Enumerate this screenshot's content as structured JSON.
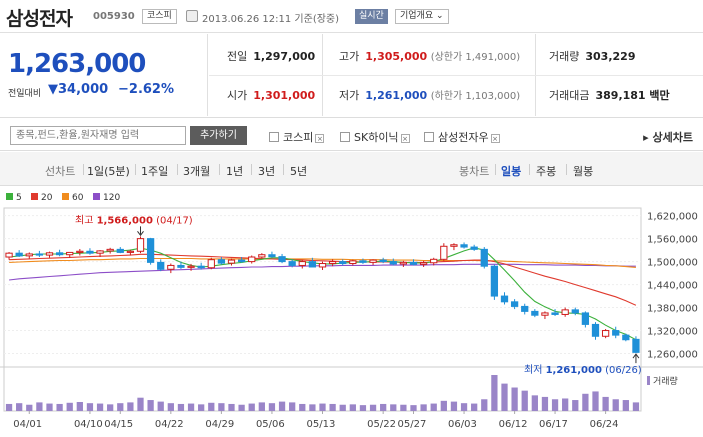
{
  "header": {
    "stock_name": "삼성전자",
    "stock_code": "005930",
    "market_badge": "코스피",
    "timestamp": "2013.06.26 12:11 기준(장중)",
    "realtime_badge": "실시간",
    "company_info_button": "기업개요",
    "company_info_chevron": "chevron-down-icon",
    "info_icon": "document-icon"
  },
  "price": {
    "current": "1,263,000",
    "change_label": "전일대비",
    "change_arrow": "▼",
    "change": "34,000",
    "change_pct": "−2.62%",
    "color": "#1e4fbd"
  },
  "stats": {
    "prev_close_label": "전일",
    "prev_close": "1,297,000",
    "high_label": "고가",
    "high": "1,305,000",
    "upper_limit": "(상한가 1,491,000)",
    "volume_label": "거래량",
    "volume": "303,229",
    "open_label": "시가",
    "open": "1,301,000",
    "low_label": "저가",
    "low": "1,261,000",
    "lower_limit": "(하한가 1,103,000)",
    "amount_label": "거래대금",
    "amount": "389,181 백만",
    "up_color": "#d01c1c",
    "down_color": "#1e4fbd"
  },
  "search": {
    "placeholder": "종목,펀드,환율,원자재명 입력",
    "add_button": "추가하기",
    "compare": [
      {
        "label": "코스피",
        "remove": "⊠"
      },
      {
        "label": "SK하이닉",
        "remove": "⊠"
      },
      {
        "label": "삼성전자우",
        "remove": "⊠"
      }
    ],
    "detail_chart": "▸ 상세차트"
  },
  "tabs": {
    "line_label": "선차트",
    "line_tabs": [
      "1일(5분)",
      "1주일",
      "3개월",
      "1년",
      "3년",
      "5년"
    ],
    "candle_label": "봉차트",
    "candle_tabs": [
      "일봉",
      "주봉",
      "월봉"
    ],
    "active": "일봉"
  },
  "legend": [
    {
      "label": "5",
      "color": "#3cb13c"
    },
    {
      "label": "20",
      "color": "#e03a2e"
    },
    {
      "label": "60",
      "color": "#f08c1e"
    },
    {
      "label": "120",
      "color": "#8c4ec8"
    }
  ],
  "chart_data": {
    "type": "candlestick",
    "y_ticks": [
      "1,620,000",
      "1,560,000",
      "1,500,000",
      "1,440,000",
      "1,380,000",
      "1,320,000",
      "1,260,000"
    ],
    "ylim": [
      1230000,
      1640000
    ],
    "x_labels": [
      "04/01",
      "04/10",
      "04/15",
      "04/22",
      "04/29",
      "05/06",
      "05/13",
      "05/22",
      "05/27",
      "06/03",
      "06/12",
      "06/17",
      "06/24"
    ],
    "high_annotation": {
      "prefix": "최고",
      "value": "1,566,000",
      "date": "(04/17)"
    },
    "low_annotation": {
      "prefix": "최저",
      "value": "1,261,000",
      "date": "(06/26)"
    },
    "volume_label": "거래량",
    "up_color": "#d01c1c",
    "down_color": "#1e90d8",
    "volume_color": "#9a85c8",
    "candles": [
      [
        1512,
        1525,
        1505,
        1522
      ],
      [
        1522,
        1530,
        1512,
        1515
      ],
      [
        1515,
        1524,
        1508,
        1520
      ],
      [
        1520,
        1528,
        1512,
        1517
      ],
      [
        1517,
        1526,
        1510,
        1523
      ],
      [
        1523,
        1531,
        1514,
        1518
      ],
      [
        1518,
        1525,
        1510,
        1524
      ],
      [
        1524,
        1533,
        1516,
        1527
      ],
      [
        1527,
        1535,
        1518,
        1522
      ],
      [
        1522,
        1530,
        1512,
        1528
      ],
      [
        1528,
        1536,
        1521,
        1532
      ],
      [
        1532,
        1538,
        1522,
        1524
      ],
      [
        1524,
        1531,
        1516,
        1527
      ],
      [
        1527,
        1566,
        1522,
        1560
      ],
      [
        1560,
        1562,
        1492,
        1498
      ],
      [
        1498,
        1506,
        1475,
        1480
      ],
      [
        1480,
        1495,
        1470,
        1490
      ],
      [
        1490,
        1500,
        1481,
        1485
      ],
      [
        1485,
        1494,
        1476,
        1488
      ],
      [
        1488,
        1497,
        1479,
        1484
      ],
      [
        1484,
        1510,
        1480,
        1505
      ],
      [
        1505,
        1512,
        1492,
        1496
      ],
      [
        1496,
        1508,
        1490,
        1504
      ],
      [
        1504,
        1512,
        1497,
        1500
      ],
      [
        1500,
        1516,
        1495,
        1512
      ],
      [
        1512,
        1522,
        1508,
        1518
      ],
      [
        1518,
        1526,
        1510,
        1513
      ],
      [
        1513,
        1520,
        1496,
        1500
      ],
      [
        1500,
        1506,
        1485,
        1490
      ],
      [
        1490,
        1504,
        1482,
        1500
      ],
      [
        1500,
        1510,
        1490,
        1486
      ],
      [
        1486,
        1500,
        1478,
        1495
      ],
      [
        1495,
        1506,
        1488,
        1500
      ],
      [
        1500,
        1506,
        1490,
        1495
      ],
      [
        1495,
        1505,
        1490,
        1502
      ],
      [
        1502,
        1508,
        1494,
        1498
      ],
      [
        1498,
        1506,
        1491,
        1504
      ],
      [
        1504,
        1510,
        1496,
        1500
      ],
      [
        1500,
        1508,
        1490,
        1494
      ],
      [
        1494,
        1502,
        1486,
        1498
      ],
      [
        1498,
        1506,
        1490,
        1493
      ],
      [
        1493,
        1502,
        1486,
        1497
      ],
      [
        1497,
        1510,
        1490,
        1506
      ],
      [
        1506,
        1548,
        1502,
        1540
      ],
      [
        1540,
        1548,
        1530,
        1544
      ],
      [
        1544,
        1550,
        1534,
        1538
      ],
      [
        1538,
        1544,
        1528,
        1532
      ],
      [
        1532,
        1538,
        1482,
        1488
      ],
      [
        1488,
        1492,
        1400,
        1410
      ],
      [
        1410,
        1420,
        1388,
        1395
      ],
      [
        1395,
        1402,
        1376,
        1383
      ],
      [
        1383,
        1390,
        1362,
        1370
      ],
      [
        1370,
        1376,
        1355,
        1360
      ],
      [
        1360,
        1370,
        1350,
        1366
      ],
      [
        1366,
        1376,
        1358,
        1362
      ],
      [
        1362,
        1380,
        1356,
        1374
      ],
      [
        1374,
        1380,
        1360,
        1366
      ],
      [
        1366,
        1370,
        1328,
        1336
      ],
      [
        1336,
        1342,
        1296,
        1305
      ],
      [
        1305,
        1324,
        1300,
        1320
      ],
      [
        1320,
        1330,
        1300,
        1308
      ],
      [
        1308,
        1312,
        1292,
        1296
      ],
      [
        1297,
        1305,
        1261,
        1263
      ]
    ],
    "ma5": [
      1512,
      1515,
      1518,
      1520,
      1520,
      1520,
      1521,
      1522,
      1523,
      1524,
      1527,
      1528,
      1530,
      1535,
      1530,
      1522,
      1510,
      1498,
      1490,
      1486,
      1488,
      1492,
      1495,
      1498,
      1502,
      1506,
      1510,
      1510,
      1505,
      1500,
      1497,
      1494,
      1494,
      1496,
      1498,
      1499,
      1500,
      1501,
      1500,
      1498,
      1497,
      1496,
      1500,
      1508,
      1518,
      1528,
      1536,
      1530,
      1505,
      1478,
      1450,
      1420,
      1396,
      1382,
      1370,
      1366,
      1365,
      1362,
      1350,
      1334,
      1320,
      1310,
      1296
    ],
    "ma20": [
      1505,
      1506,
      1507,
      1508,
      1509,
      1510,
      1511,
      1512,
      1513,
      1514,
      1515,
      1516,
      1517,
      1519,
      1519,
      1518,
      1517,
      1516,
      1515,
      1514,
      1513,
      1512,
      1511,
      1510,
      1509,
      1508,
      1507,
      1506,
      1505,
      1504,
      1503,
      1502,
      1501,
      1500,
      1500,
      1499,
      1499,
      1499,
      1499,
      1498,
      1498,
      1498,
      1499,
      1500,
      1501,
      1503,
      1504,
      1504,
      1500,
      1494,
      1486,
      1478,
      1470,
      1462,
      1455,
      1448,
      1440,
      1432,
      1424,
      1416,
      1408,
      1398,
      1386
    ],
    "ma60": [
      1498,
      1499,
      1500,
      1501,
      1502,
      1503,
      1503,
      1504,
      1505,
      1505,
      1506,
      1507,
      1507,
      1508,
      1508,
      1508,
      1508,
      1508,
      1508,
      1507,
      1507,
      1507,
      1507,
      1507,
      1507,
      1507,
      1507,
      1507,
      1507,
      1507,
      1507,
      1506,
      1506,
      1506,
      1505,
      1505,
      1505,
      1505,
      1504,
      1504,
      1504,
      1503,
      1503,
      1503,
      1503,
      1503,
      1503,
      1502,
      1502,
      1501,
      1500,
      1499,
      1498,
      1497,
      1496,
      1495,
      1494,
      1493,
      1492,
      1490,
      1489,
      1487,
      1485
    ],
    "ma120": [
      1452,
      1455,
      1457,
      1459,
      1461,
      1463,
      1465,
      1467,
      1469,
      1471,
      1472,
      1473,
      1474,
      1475,
      1476,
      1477,
      1478,
      1479,
      1480,
      1481,
      1482,
      1483,
      1484,
      1485,
      1486,
      1486,
      1487,
      1487,
      1488,
      1488,
      1489,
      1489,
      1489,
      1490,
      1490,
      1490,
      1490,
      1491,
      1491,
      1491,
      1491,
      1491,
      1492,
      1492,
      1492,
      1493,
      1493,
      1493,
      1493,
      1493,
      1493,
      1492,
      1492,
      1492,
      1491,
      1491,
      1491,
      1490,
      1490,
      1489,
      1489,
      1488,
      1488
    ],
    "volume": [
      18,
      20,
      16,
      22,
      19,
      18,
      21,
      23,
      20,
      19,
      17,
      20,
      22,
      34,
      28,
      24,
      20,
      18,
      19,
      17,
      21,
      20,
      18,
      16,
      19,
      22,
      20,
      24,
      22,
      18,
      17,
      19,
      18,
      16,
      17,
      15,
      16,
      18,
      17,
      16,
      15,
      17,
      19,
      26,
      24,
      20,
      19,
      30,
      92,
      70,
      60,
      52,
      40,
      36,
      30,
      32,
      28,
      44,
      50,
      36,
      30,
      28,
      22
    ]
  }
}
